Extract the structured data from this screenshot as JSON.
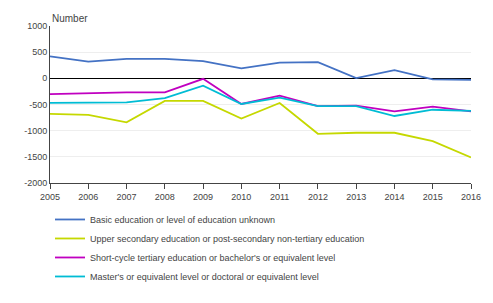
{
  "chart_data": {
    "type": "line",
    "ylabel": "Number",
    "x": [
      2005,
      2006,
      2007,
      2008,
      2009,
      2010,
      2011,
      2012,
      2013,
      2014,
      2015,
      2016
    ],
    "series": [
      {
        "name": "Basic education or level of education unknown",
        "color": "#4472c4",
        "values": [
          420,
          320,
          370,
          370,
          330,
          190,
          300,
          310,
          5,
          155,
          -20,
          -30
        ]
      },
      {
        "name": "Upper secondary education or post-secondary non-tertiary education",
        "color": "#c5d800",
        "values": [
          -680,
          -700,
          -840,
          -430,
          -430,
          -770,
          -470,
          -1060,
          -1040,
          -1040,
          -1200,
          -1510
        ]
      },
      {
        "name": "Short-cycle tertiary education or bachelor's or equivalent level",
        "color": "#c000c0",
        "values": [
          -300,
          -280,
          -270,
          -270,
          -10,
          -490,
          -330,
          -530,
          -520,
          -630,
          -540,
          -630
        ]
      },
      {
        "name": "Master's or equivalent level or doctoral or equivalent level",
        "color": "#00bcd4",
        "values": [
          -470,
          -470,
          -460,
          -380,
          -140,
          -490,
          -370,
          -530,
          -530,
          -720,
          -600,
          -620
        ]
      }
    ],
    "xlim": [
      2005,
      2016
    ],
    "xticks": [
      2005,
      2006,
      2007,
      2008,
      2009,
      2010,
      2011,
      2012,
      2013,
      2014,
      2015,
      2016
    ],
    "ylim": [
      -2000,
      1000
    ],
    "yticks": [
      -2000,
      -1500,
      -1000,
      -500,
      0,
      500,
      1000
    ],
    "grid": "y",
    "legend": "bottom"
  }
}
